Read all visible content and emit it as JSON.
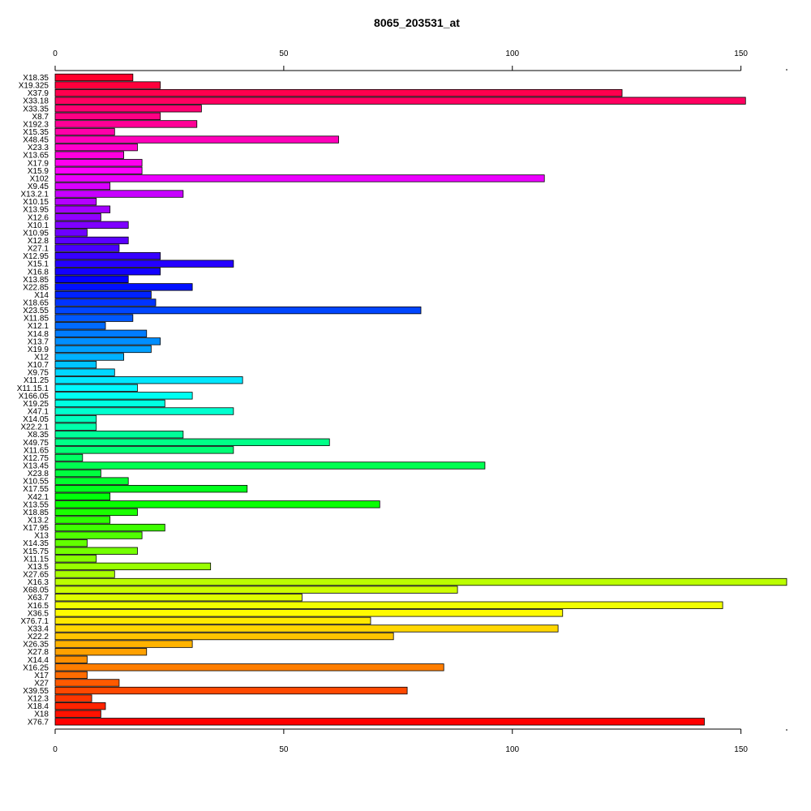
{
  "chart_data": {
    "type": "bar",
    "orientation": "horizontal",
    "title": "8065_203531_at",
    "xlabel": "",
    "ylabel": "",
    "xlim": [
      0,
      160
    ],
    "x_ticks": [
      0,
      50,
      100,
      150
    ],
    "x_tick_labels": [
      "0",
      "50",
      "100",
      "150"
    ],
    "axes": [
      "top",
      "bottom"
    ],
    "grid": false,
    "legend": "none",
    "bar_colors": "rainbow gradient (red → magenta → blue → cyan → green → yellow → orange → red)",
    "categories": [
      "X18.35",
      "X19.325",
      "X37.9",
      "X33.18",
      "X33.35",
      "X8.7",
      "X192.3",
      "X15.35",
      "X48.45",
      "X23.3",
      "X13.65",
      "X17.9",
      "X15.9",
      "X102",
      "X9.45",
      "X13.2.1",
      "X10.15",
      "X13.95",
      "X12.6",
      "X10.1",
      "X10.95",
      "X12.8",
      "X27.1",
      "X12.95",
      "X15.1",
      "X16.8",
      "X13.85",
      "X22.85",
      "X14",
      "X18.65",
      "X23.55",
      "X11.85",
      "X12.1",
      "X14.8",
      "X13.7",
      "X19.9",
      "X12",
      "X10.7",
      "X9.75",
      "X11.25",
      "X11.15.1",
      "X166.05",
      "X19.25",
      "X47.1",
      "X14.05",
      "X22.2.1",
      "X8.35",
      "X49.75",
      "X11.65",
      "X12.75",
      "X13.45",
      "X23.8",
      "X10.55",
      "X17.55",
      "X42.1",
      "X13.55",
      "X18.85",
      "X13.2",
      "X17.95",
      "X13",
      "X14.35",
      "X15.75",
      "X11.15",
      "X13.5",
      "X27.65",
      "X16.3",
      "X68.05",
      "X63.7",
      "X16.5",
      "X36.5",
      "X76.7.1",
      "X33.4",
      "X22.2",
      "X26.35",
      "X27.8",
      "X14.4",
      "X16.25",
      "X17",
      "X27",
      "X39.55",
      "X12.3",
      "X18.4",
      "X18",
      "X76.7"
    ],
    "values": [
      17,
      23,
      124,
      151,
      32,
      23,
      31,
      13,
      62,
      18,
      15,
      19,
      19,
      107,
      12,
      28,
      9,
      12,
      10,
      16,
      7,
      16,
      14,
      23,
      39,
      23,
      16,
      30,
      21,
      22,
      80,
      17,
      11,
      20,
      23,
      21,
      15,
      9,
      13,
      41,
      18,
      30,
      24,
      39,
      9,
      9,
      28,
      60,
      39,
      6,
      94,
      10,
      16,
      42,
      12,
      71,
      18,
      12,
      24,
      19,
      7,
      18,
      9,
      34,
      13,
      160,
      88,
      54,
      146,
      111,
      69,
      110,
      74,
      30,
      20,
      7,
      85,
      7,
      14,
      77,
      8,
      11,
      10,
      142
    ]
  }
}
